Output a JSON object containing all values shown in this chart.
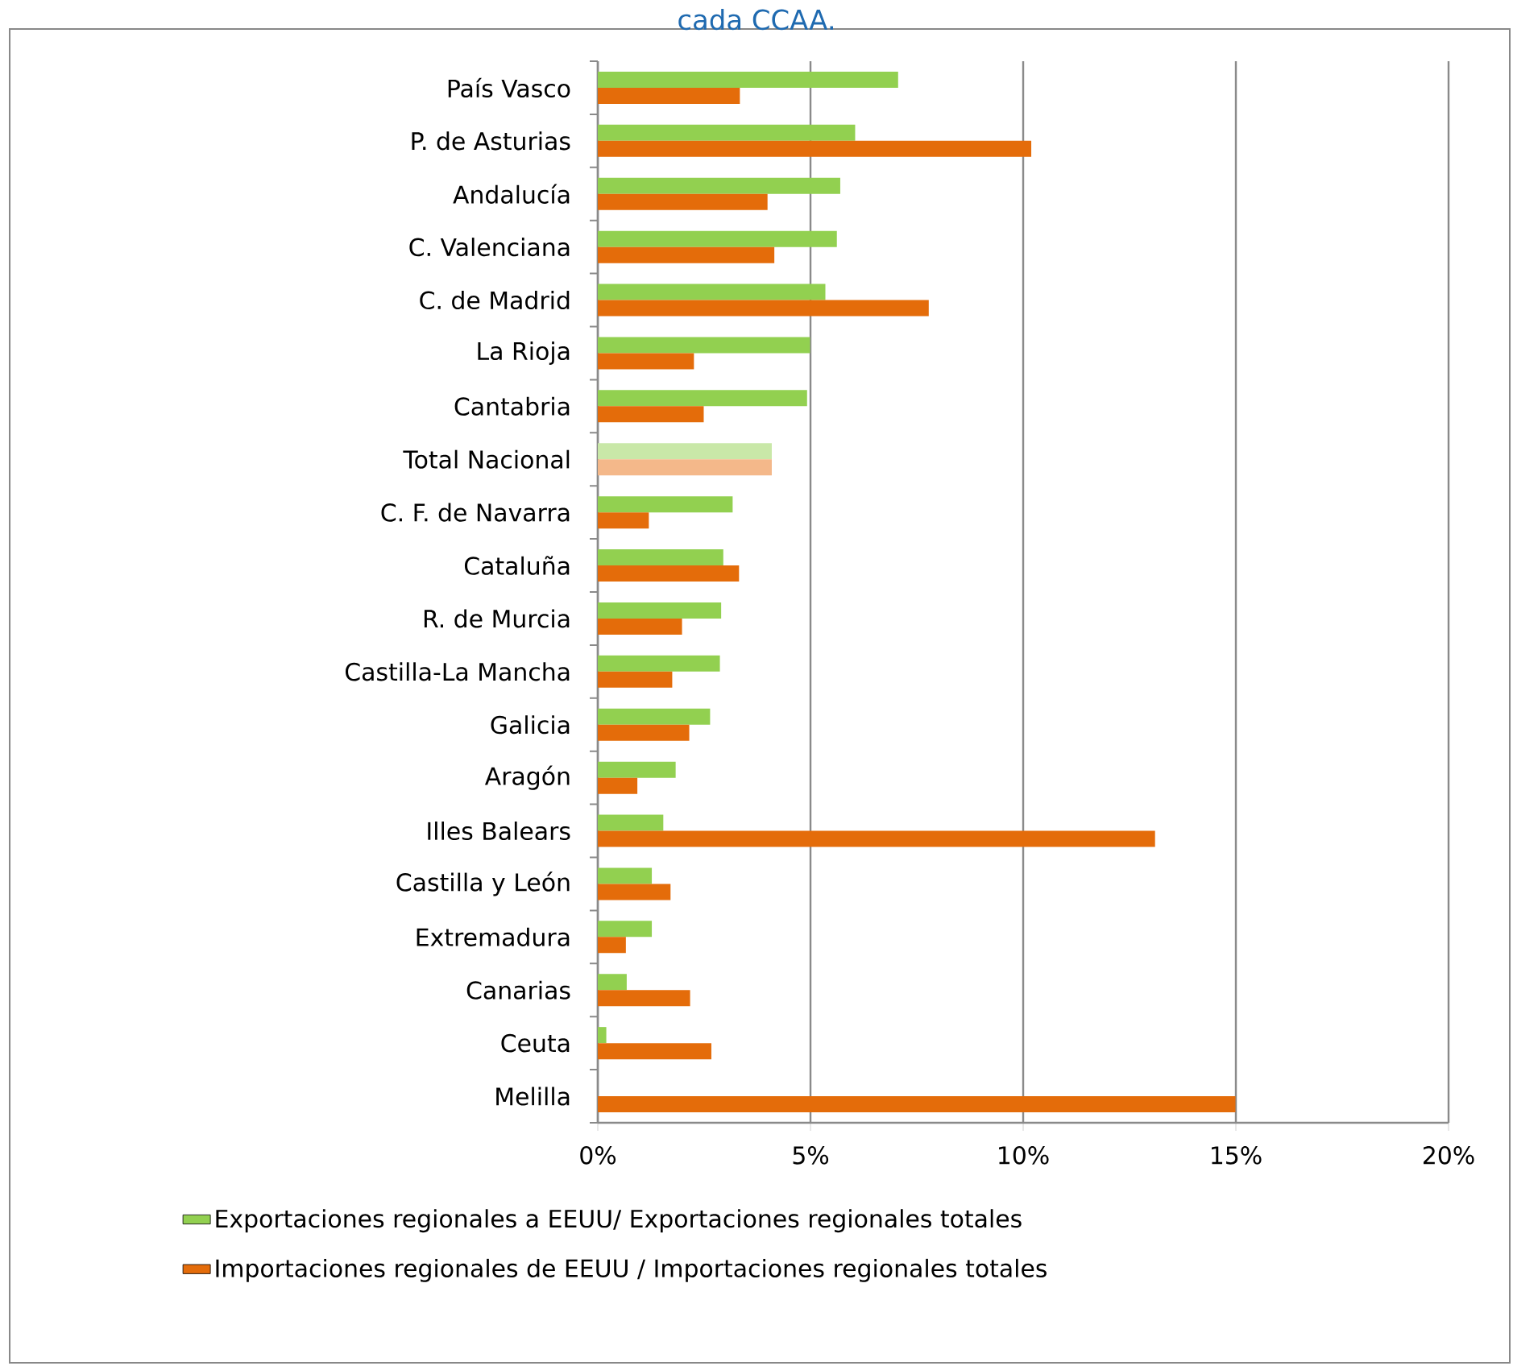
{
  "chart_data": {
    "type": "bar",
    "orientation": "horizontal",
    "title": "cada CCAA.",
    "categories": [
      "País Vasco",
      "P. de Asturias",
      "Andalucía",
      "C. Valenciana",
      "C. de Madrid",
      "La Rioja",
      "Cantabria",
      "Total Nacional",
      "C. F. de Navarra",
      "Cataluña",
      "R. de Murcia",
      "Castilla-La Mancha",
      "Galicia",
      "Aragón",
      "Illes Balears",
      "Castilla y León",
      "Extremadura",
      "Canarias",
      "Ceuta",
      "Melilla"
    ],
    "series": [
      {
        "name": "Exportaciones regionales a EEUU/ Exportaciones regionales totales",
        "color": "#92d050",
        "colors": [
          "#92d050",
          "#92d050",
          "#92d050",
          "#92d050",
          "#92d050",
          "#92d050",
          "#92d050",
          "#c9e8a8",
          "#92d050",
          "#92d050",
          "#92d050",
          "#92d050",
          "#92d050",
          "#92d050",
          "#92d050",
          "#92d050",
          "#92d050",
          "#92d050",
          "#92d050",
          "#92d050"
        ],
        "values": [
          7.06,
          6.05,
          5.7,
          5.62,
          5.35,
          4.99,
          4.92,
          4.09,
          3.17,
          2.95,
          2.9,
          2.87,
          2.64,
          1.83,
          1.54,
          1.27,
          1.27,
          0.68,
          0.2,
          null
        ]
      },
      {
        "name": "Importaciones regionales de EEUU / Importaciones regionales totales",
        "color": "#e46c0a",
        "colors": [
          "#e46c0a",
          "#e46c0a",
          "#e46c0a",
          "#e46c0a",
          "#e46c0a",
          "#e46c0a",
          "#e46c0a",
          "#f4b88a",
          "#e46c0a",
          "#e46c0a",
          "#e46c0a",
          "#e46c0a",
          "#e46c0a",
          "#e46c0a",
          "#e46c0a",
          "#e46c0a",
          "#e46c0a",
          "#e46c0a",
          "#e46c0a",
          "#e46c0a"
        ],
        "values": [
          3.34,
          10.19,
          3.99,
          4.15,
          7.78,
          2.26,
          2.49,
          4.09,
          1.2,
          3.32,
          1.98,
          1.75,
          2.15,
          0.93,
          13.1,
          1.71,
          0.66,
          2.17,
          2.67,
          14.99
        ]
      }
    ],
    "xlim": [
      0,
      20
    ],
    "xticks": [
      {
        "value": 0,
        "label": "0%"
      },
      {
        "value": 5,
        "label": "5%"
      },
      {
        "value": 10,
        "label": "10%"
      },
      {
        "value": 15,
        "label": "15%"
      },
      {
        "value": 20,
        "label": "20%"
      }
    ],
    "grid": "x",
    "legend": "bottom"
  }
}
